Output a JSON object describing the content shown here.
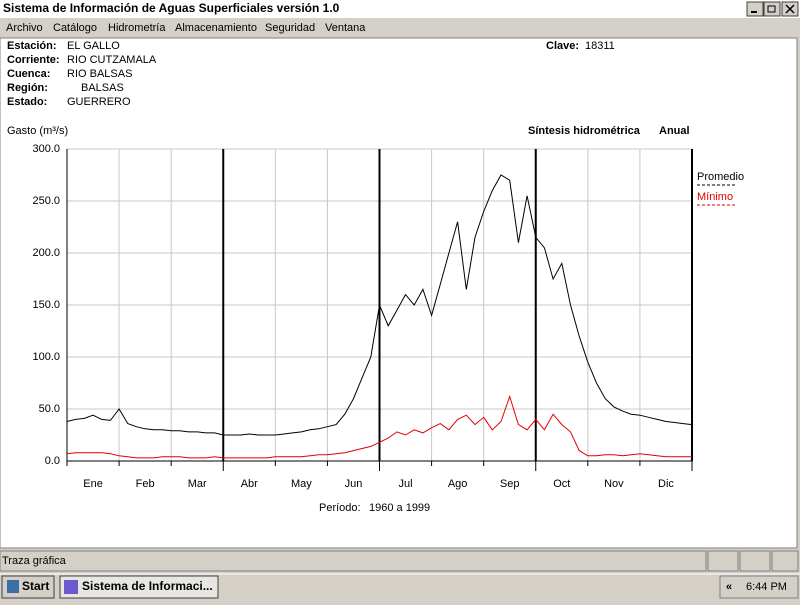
{
  "window": {
    "title": "Sistema de Información de Aguas Superficiales  versión 1.0"
  },
  "menu": [
    "Archivo",
    "Catálogo",
    "Hidrometría",
    "Almacenamiento",
    "Seguridad",
    "Ventana"
  ],
  "station": {
    "fields": [
      [
        "Estación:",
        "EL GALLO"
      ],
      [
        "Corriente:",
        "RIO CUTZAMALA"
      ],
      [
        "Cuenca:",
        "RIO BALSAS"
      ],
      [
        "Región:",
        "BALSAS"
      ],
      [
        "Estado:",
        "GUERRERO"
      ]
    ],
    "clave": {
      "label": "Clave:",
      "value": "18311"
    }
  },
  "chart_data": {
    "type": "line",
    "y_label": "Gasto (m³/s)",
    "title": "Síntesis hidrométrica",
    "subtitle": "Anual",
    "months": [
      "Ene",
      "Feb",
      "Mar",
      "Abr",
      "May",
      "Jun",
      "Jul",
      "Ago",
      "Sep",
      "Oct",
      "Nov",
      "Dic"
    ],
    "period_label": "Período:",
    "period": "1960 a 1999",
    "ylim": [
      0,
      300
    ],
    "yticks": [
      {
        "value": 0,
        "label": "0.0"
      },
      {
        "value": 50,
        "label": "50.0"
      },
      {
        "value": 100,
        "label": "100.0"
      },
      {
        "value": 150,
        "label": "150.0"
      },
      {
        "value": 200,
        "label": "200.0"
      },
      {
        "value": 250,
        "label": "250.0"
      },
      {
        "value": 300,
        "label": "300.0"
      }
    ],
    "grid": true,
    "series": [
      {
        "name": "Promedio",
        "color": "#000000",
        "values": [
          38,
          40,
          41,
          44,
          40,
          39,
          50,
          36,
          33,
          31,
          30,
          30,
          29,
          29,
          28,
          28,
          27,
          27,
          25,
          25,
          25,
          26,
          25,
          25,
          25,
          26,
          27,
          28,
          30,
          31,
          33,
          35,
          45,
          60,
          80,
          100,
          150,
          130,
          145,
          160,
          150,
          165,
          140,
          170,
          200,
          230,
          165,
          215,
          240,
          260,
          275,
          270,
          210,
          255,
          215,
          205,
          175,
          190,
          150,
          120,
          95,
          75,
          60,
          52,
          48,
          45,
          44,
          42,
          40,
          38,
          37,
          36,
          35
        ]
      },
      {
        "name": "Mínimo",
        "color": "#e00000",
        "values": [
          7,
          8,
          8,
          8,
          8,
          7,
          5,
          4,
          3,
          3,
          3,
          4,
          4,
          4,
          3,
          3,
          3,
          4,
          3,
          3,
          3,
          3,
          3,
          3,
          4,
          4,
          4,
          4,
          5,
          6,
          6,
          7,
          8,
          10,
          12,
          14,
          18,
          22,
          28,
          25,
          30,
          27,
          32,
          36,
          30,
          40,
          44,
          35,
          42,
          30,
          38,
          62,
          35,
          30,
          40,
          30,
          45,
          35,
          28,
          10,
          5,
          5,
          6,
          6,
          5,
          6,
          7,
          6,
          5,
          4,
          4,
          4,
          4
        ]
      }
    ]
  },
  "status_bar": "Traza gráfica",
  "taskbar": {
    "start": "Start",
    "task": "Sistema de Informaci...",
    "tray_toggle": "«",
    "clock": "6:44 PM"
  }
}
